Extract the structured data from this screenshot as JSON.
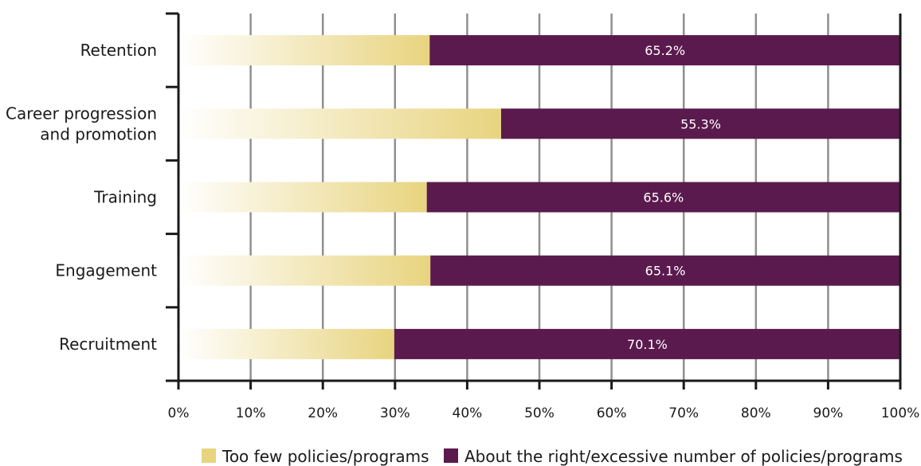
{
  "chart_data": {
    "type": "bar",
    "orientation": "horizontal",
    "stacked": true,
    "categories": [
      "Retention",
      "Career progression\nand promotion",
      "Training",
      "Engagement",
      "Recruitment"
    ],
    "series": [
      {
        "name": "Too few policies/programs",
        "values": [
          34.8,
          44.7,
          34.4,
          34.9,
          29.9
        ],
        "color": "#e8d47f"
      },
      {
        "name": "About the right/excessive number of policies/programs",
        "values": [
          65.2,
          55.3,
          65.6,
          65.1,
          70.1
        ],
        "color": "#5b1a4e",
        "data_labels": [
          "65.2%",
          "55.3%",
          "65.6%",
          "65.1%",
          "70.1%"
        ]
      }
    ],
    "xlim": [
      0,
      100
    ],
    "x_ticks": [
      "0%",
      "10%",
      "20%",
      "30%",
      "40%",
      "50%",
      "60%",
      "70%",
      "80%",
      "90%",
      "100%"
    ],
    "grid": true,
    "legend_position": "bottom",
    "xlabel": "",
    "ylabel": ""
  }
}
